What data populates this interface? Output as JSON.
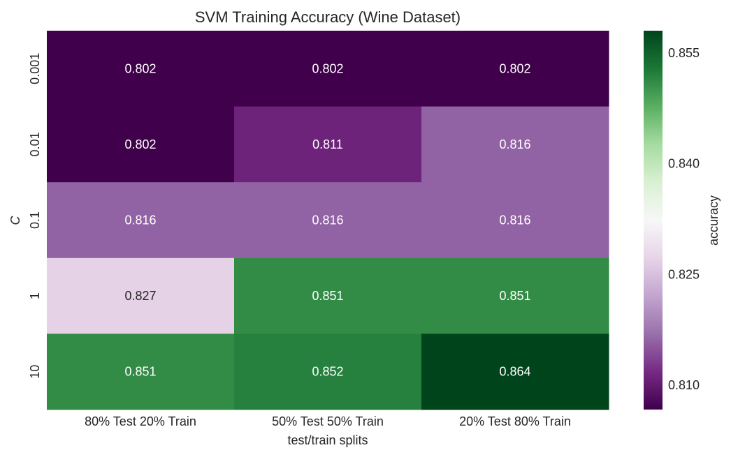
{
  "chart_data": {
    "type": "heatmap",
    "title": "SVM Training Accuracy (Wine Dataset)",
    "xlabel": "test/train splits",
    "ylabel": "C",
    "x_categories": [
      "80% Test 20% Train",
      "50% Test 50% Train",
      "20% Test 80% Train"
    ],
    "y_categories": [
      "0.001",
      "0.01",
      "0.1",
      "1",
      "10"
    ],
    "values": [
      [
        0.802,
        0.802,
        0.802
      ],
      [
        0.802,
        0.811,
        0.816
      ],
      [
        0.816,
        0.816,
        0.816
      ],
      [
        0.827,
        0.851,
        0.851
      ],
      [
        0.851,
        0.852,
        0.864
      ]
    ],
    "cell_labels": [
      [
        "0.802",
        "0.802",
        "0.802"
      ],
      [
        "0.802",
        "0.811",
        "0.816"
      ],
      [
        "0.816",
        "0.816",
        "0.816"
      ],
      [
        "0.827",
        "0.851",
        "0.851"
      ],
      [
        "0.851",
        "0.852",
        "0.864"
      ]
    ],
    "colormap": "PRGn",
    "color_range": [
      0.8067,
      0.858
    ],
    "colorbar": {
      "label": "accuracy",
      "ticks": [
        0.81,
        0.825,
        0.84,
        0.855
      ],
      "tick_labels": [
        "0.810",
        "0.825",
        "0.840",
        "0.855"
      ]
    }
  }
}
